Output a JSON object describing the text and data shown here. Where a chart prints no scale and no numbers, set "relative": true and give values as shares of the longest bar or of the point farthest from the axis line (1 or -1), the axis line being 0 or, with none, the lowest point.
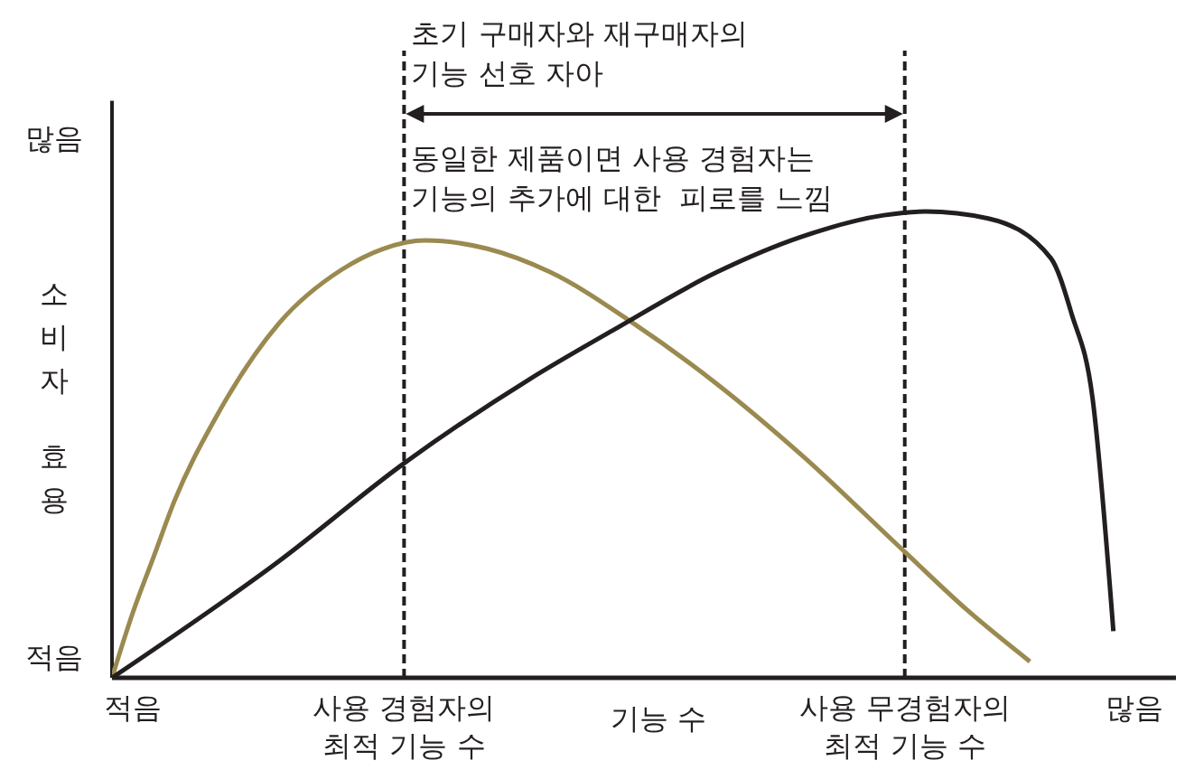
{
  "chart_data": {
    "type": "line",
    "relative": true,
    "xlabel": "기능 수",
    "ylabel": "소비자 효용",
    "categories": [
      null,
      "적음",
      null,
      null,
      null,
      null,
      null,
      null,
      null,
      null,
      null,
      null,
      null,
      null,
      "사용 경험자의\n최적 기능 수",
      null,
      null,
      null,
      null,
      null,
      null,
      null,
      null,
      null,
      null,
      null,
      null,
      null,
      null,
      null,
      null,
      null,
      null,
      null,
      null,
      null,
      null,
      null,
      "사용 무경험자의\n최적 기능 수",
      null,
      null,
      null,
      null,
      null,
      null,
      null,
      null,
      null,
      null,
      "많음",
      null,
      null
    ],
    "series": [
      {
        "color": "#9a8a50",
        "values": [
          0,
          0.14,
          0.26,
          0.38,
          null,
          0.56,
          null,
          null,
          0.76,
          null,
          null,
          0.875,
          null,
          0.92,
          null,
          0.938,
          null,
          null,
          0.92,
          null,
          null,
          0.87,
          null,
          null,
          null,
          0.76,
          null,
          null,
          null,
          0.63,
          null,
          null,
          null,
          0.48,
          null,
          null,
          null,
          null,
          0.27,
          null,
          null,
          0.145,
          null,
          null,
          0.035,
          null,
          null,
          null,
          null,
          null,
          null,
          null
        ]
      },
      {
        "color": "#231f20",
        "values": [
          0,
          null,
          null,
          null,
          null,
          null,
          null,
          null,
          0.25,
          null,
          null,
          null,
          null,
          null,
          0.46,
          null,
          null,
          null,
          null,
          null,
          0.64,
          null,
          null,
          null,
          0.745,
          null,
          null,
          null,
          null,
          0.87,
          null,
          null,
          null,
          0.945,
          null,
          null,
          null,
          0.992,
          null,
          1,
          null,
          null,
          0.985,
          null,
          null,
          0.9,
          0.78,
          0.6,
          0.1,
          null,
          null,
          null
        ]
      }
    ],
    "ref_lines": [
      {
        "axis": "x",
        "value": "사용 경험자의\n최적 기능 수",
        "label": null,
        "color": "#231f20",
        "line_style": "dashed"
      },
      {
        "axis": "x",
        "value": "사용 무경험자의\n최적 기능 수",
        "label": null,
        "color": "#231f20",
        "line_style": "dashed"
      }
    ],
    "annotations": [
      "초기 구매자와 재구매자의\n기능 선호 자아",
      "동일한 제품이면 사용 경험자는\n기능의 추가에 대한  피로를 느낌",
      "많음",
      "적음"
    ],
    "grid": false,
    "legend": false,
    "marker": "none",
    "line_style": "solid"
  }
}
